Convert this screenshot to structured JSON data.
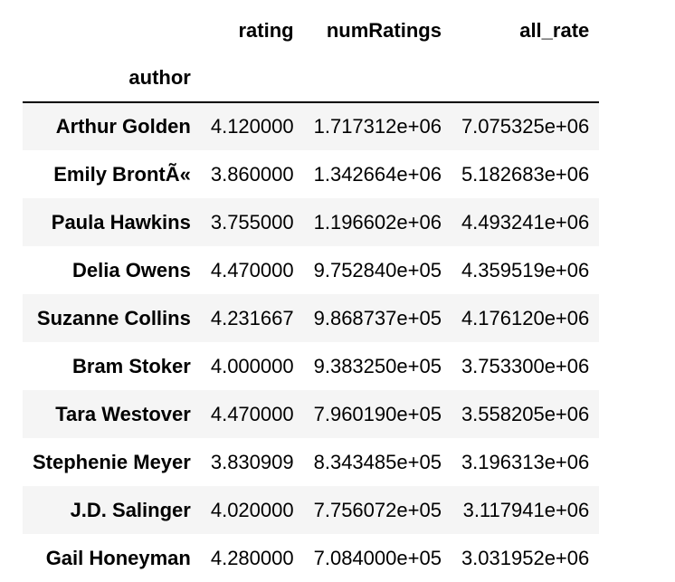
{
  "table": {
    "index_name": "author",
    "columns": [
      "rating",
      "numRatings",
      "all_rate"
    ],
    "rows": [
      {
        "author": "Arthur Golden",
        "rating": "4.120000",
        "numRatings": "1.717312e+06",
        "all_rate": "7.075325e+06"
      },
      {
        "author": "Emily BrontÃ«",
        "rating": "3.860000",
        "numRatings": "1.342664e+06",
        "all_rate": "5.182683e+06"
      },
      {
        "author": "Paula Hawkins",
        "rating": "3.755000",
        "numRatings": "1.196602e+06",
        "all_rate": "4.493241e+06"
      },
      {
        "author": "Delia Owens",
        "rating": "4.470000",
        "numRatings": "9.752840e+05",
        "all_rate": "4.359519e+06"
      },
      {
        "author": "Suzanne Collins",
        "rating": "4.231667",
        "numRatings": "9.868737e+05",
        "all_rate": "4.176120e+06"
      },
      {
        "author": "Bram Stoker",
        "rating": "4.000000",
        "numRatings": "9.383250e+05",
        "all_rate": "3.753300e+06"
      },
      {
        "author": "Tara Westover",
        "rating": "4.470000",
        "numRatings": "7.960190e+05",
        "all_rate": "3.558205e+06"
      },
      {
        "author": "Stephenie Meyer",
        "rating": "3.830909",
        "numRatings": "8.343485e+05",
        "all_rate": "3.196313e+06"
      },
      {
        "author": "J.D. Salinger",
        "rating": "4.020000",
        "numRatings": "7.756072e+05",
        "all_rate": "3.117941e+06"
      },
      {
        "author": "Gail Honeyman",
        "rating": "4.280000",
        "numRatings": "7.084000e+05",
        "all_rate": "3.031952e+06"
      }
    ]
  }
}
